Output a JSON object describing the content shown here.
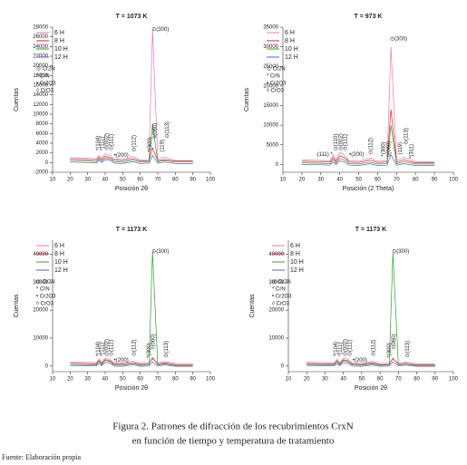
{
  "chart_data": [
    {
      "type": "line",
      "title": "T = 1073 K",
      "x_label": "Posición 2θ",
      "y_label": "Cuentas",
      "x": [
        20,
        30,
        35,
        36.5,
        38,
        40,
        42,
        43.5,
        45,
        50,
        56,
        60,
        65,
        67,
        70,
        74,
        80,
        90
      ],
      "series": [
        {
          "name": "6 H",
          "color": "#e87ab0",
          "values": [
            1000,
            900,
            800,
            1500,
            900,
            1800,
            1600,
            1300,
            800,
            600,
            1200,
            500,
            600,
            27500,
            700,
            1100,
            400,
            400
          ]
        },
        {
          "name": "8 H",
          "color": "#e02020",
          "values": [
            700,
            600,
            500,
            1100,
            600,
            1300,
            1100,
            900,
            500,
            400,
            800,
            300,
            400,
            3000,
            400,
            600,
            300,
            300
          ]
        },
        {
          "name": "10 H",
          "color": "#2ca02c",
          "values": [
            400,
            300,
            200,
            800,
            300,
            900,
            800,
            600,
            200,
            100,
            500,
            100,
            200,
            8000,
            200,
            400,
            100,
            100
          ]
        },
        {
          "name": "12 H",
          "color": "#5b5bd6",
          "values": [
            100,
            0,
            -100,
            500,
            0,
            600,
            500,
            300,
            -100,
            -200,
            200,
            -200,
            -100,
            1500,
            -100,
            100,
            -200,
            -200
          ]
        }
      ],
      "xlim": [
        10,
        100
      ],
      "xticks": [
        10,
        20,
        30,
        40,
        50,
        60,
        70,
        80,
        90,
        100
      ],
      "ylim": [
        -2000,
        28000
      ],
      "yticks": [
        -2000,
        0,
        2000,
        4000,
        6000,
        8000,
        10000,
        12000,
        14000,
        16000,
        18000,
        20000,
        22000,
        24000,
        26000,
        28000
      ],
      "phase_legend": [
        "⊙ Cr2N",
        "* CrN",
        "• Cr2O3",
        "◊ CrO3"
      ],
      "annotations": [
        {
          "text": "⊙(300)",
          "x": 66.5,
          "y": 27500,
          "orientation": "horizontal"
        },
        {
          "text": "*(104)",
          "x": 36,
          "y": 2500,
          "orientation": "vertical"
        },
        {
          "text": "*(111)",
          "x": 38.5,
          "y": 2500,
          "orientation": "vertical"
        },
        {
          "text": "⊙(002)",
          "x": 41,
          "y": 2500,
          "orientation": "vertical"
        },
        {
          "text": "⊙(111)",
          "x": 43.5,
          "y": 2500,
          "orientation": "vertical"
        },
        {
          "text": "•(200)",
          "x": 45,
          "y": 1500,
          "orientation": "horizontal"
        },
        {
          "text": "⊙(112)",
          "x": 56.5,
          "y": 2200,
          "orientation": "vertical"
        },
        {
          "text": "*(300)",
          "x": 65.5,
          "y": 2200,
          "orientation": "vertical"
        },
        {
          "text": "◊(060)",
          "x": 68.5,
          "y": 5000,
          "orientation": "vertical"
        },
        {
          "text": "(119)",
          "x": 72.5,
          "y": 2200,
          "orientation": "vertical"
        },
        {
          "text": "⊙(113)",
          "x": 75.5,
          "y": 5000,
          "orientation": "vertical"
        }
      ]
    },
    {
      "type": "line",
      "title": "T = 973 K",
      "x_label": "Posición (2 Theta)",
      "y_label": "Cuentas",
      "x": [
        20,
        30,
        35,
        36.5,
        38,
        40,
        42,
        43.5,
        45,
        50,
        56,
        60,
        65,
        67,
        70,
        74,
        80,
        90
      ],
      "series": [
        {
          "name": "6 H",
          "color": "#e87ab0",
          "values": [
            1200,
            1000,
            900,
            2500,
            1100,
            3000,
            2500,
            1800,
            900,
            800,
            1600,
            800,
            900,
            30000,
            1000,
            1800,
            700,
            700
          ]
        },
        {
          "name": "8 H",
          "color": "#e02020",
          "values": [
            800,
            700,
            600,
            1800,
            700,
            2200,
            1800,
            1300,
            600,
            500,
            1100,
            500,
            600,
            14000,
            600,
            1200,
            400,
            400
          ]
        },
        {
          "name": "10 H",
          "color": "#2ca02c",
          "values": [
            400,
            300,
            200,
            1200,
            300,
            1500,
            1200,
            800,
            200,
            100,
            600,
            100,
            200,
            10000,
            200,
            700,
            100,
            100
          ]
        },
        {
          "name": "12 H",
          "color": "#5b5bd6",
          "values": [
            0,
            -100,
            -200,
            600,
            -100,
            900,
            700,
            300,
            -200,
            -300,
            200,
            -300,
            -200,
            2500,
            -200,
            200,
            -300,
            -300
          ]
        }
      ],
      "xlim": [
        10,
        100
      ],
      "xticks": [
        10,
        20,
        30,
        40,
        50,
        60,
        70,
        80,
        90,
        100
      ],
      "ylim": [
        -2000,
        35000
      ],
      "yticks": [
        0,
        5000,
        10000,
        15000,
        20000,
        25000,
        30000,
        35000
      ],
      "phase_legend": [
        "⊙ Cr2N",
        "* CrN",
        "• Cr2O3",
        "◊ CrO3"
      ],
      "annotations": [
        {
          "text": "⊙(300)",
          "x": 66.5,
          "y": 32000,
          "orientation": "horizontal"
        },
        {
          "text": "(111) *",
          "x": 28,
          "y": 2500,
          "orientation": "horizontal"
        },
        {
          "text": "⊙(110)",
          "x": 38,
          "y": 3500,
          "orientation": "vertical"
        },
        {
          "text": "⊙(002)",
          "x": 40.5,
          "y": 3500,
          "orientation": "vertical"
        },
        {
          "text": "⊙(111)",
          "x": 43,
          "y": 3500,
          "orientation": "vertical"
        },
        {
          "text": "•(200)",
          "x": 45,
          "y": 2500,
          "orientation": "horizontal"
        },
        {
          "text": "⊙(112)",
          "x": 56.5,
          "y": 2500,
          "orientation": "vertical"
        },
        {
          "text": "*(300)",
          "x": 63,
          "y": 2000,
          "orientation": "vertical"
        },
        {
          "text": "◊(060)",
          "x": 66,
          "y": 2000,
          "orientation": "vertical"
        },
        {
          "text": "(119)",
          "x": 72,
          "y": 2500,
          "orientation": "vertical"
        },
        {
          "text": "⊙(113)",
          "x": 75,
          "y": 5000,
          "orientation": "vertical"
        },
        {
          "text": "*(311)",
          "x": 78,
          "y": 1500,
          "orientation": "vertical"
        }
      ]
    },
    {
      "type": "line",
      "title": "T = 1173 K",
      "x_label": "Posición 2θ",
      "y_label": "Cuentas",
      "x": [
        20,
        30,
        35,
        36.5,
        38,
        40,
        42,
        43.5,
        45,
        50,
        56,
        60,
        65,
        67,
        70,
        74,
        80,
        90
      ],
      "series": [
        {
          "name": "6 H",
          "color": "#e87ab0",
          "values": [
            1500,
            1300,
            1200,
            2500,
            1300,
            2800,
            2600,
            2000,
            1200,
            1100,
            1800,
            1000,
            1100,
            2500,
            1100,
            1600,
            900,
            900
          ]
        },
        {
          "name": "8 H",
          "color": "#e02020",
          "values": [
            1000,
            900,
            800,
            2000,
            900,
            2300,
            2100,
            1500,
            800,
            700,
            1300,
            600,
            700,
            3000,
            700,
            1100,
            500,
            500
          ]
        },
        {
          "name": "10 H",
          "color": "#2ca02c",
          "values": [
            600,
            500,
            400,
            1800,
            500,
            2000,
            1800,
            1200,
            400,
            300,
            900,
            300,
            400,
            41000,
            400,
            800,
            200,
            200
          ]
        },
        {
          "name": "12 H",
          "color": "#5b5bd6",
          "values": [
            200,
            100,
            0,
            1000,
            100,
            1300,
            1100,
            700,
            0,
            -100,
            500,
            -100,
            0,
            1500,
            0,
            400,
            -100,
            -100
          ]
        }
      ],
      "xlim": [
        10,
        100
      ],
      "xticks": [
        10,
        20,
        30,
        40,
        50,
        60,
        70,
        80,
        90,
        100
      ],
      "ylim": [
        -2000,
        45000
      ],
      "yticks": [
        0,
        10000,
        20000,
        30000,
        40000
      ],
      "phase_legend": [
        "⊙ Cr2N",
        "* CrN",
        "• Cr2O3",
        "◊ CrO3"
      ],
      "annotations": [
        {
          "text": "⊙(300)",
          "x": 66.5,
          "y": 41000,
          "orientation": "horizontal"
        },
        {
          "text": "*(104)",
          "x": 36,
          "y": 3500,
          "orientation": "vertical"
        },
        {
          "text": "*(111)",
          "x": 38.5,
          "y": 3500,
          "orientation": "vertical"
        },
        {
          "text": "⊙(002)",
          "x": 41,
          "y": 3500,
          "orientation": "vertical"
        },
        {
          "text": "⊙(111)",
          "x": 43.5,
          "y": 3500,
          "orientation": "vertical"
        },
        {
          "text": "•(200)",
          "x": 45,
          "y": 2000,
          "orientation": "horizontal"
        },
        {
          "text": "⊙(112)",
          "x": 56.5,
          "y": 3500,
          "orientation": "vertical"
        },
        {
          "text": "*(300)",
          "x": 65,
          "y": 3000,
          "orientation": "vertical"
        },
        {
          "text": "◊(060)",
          "x": 67.5,
          "y": 6000,
          "orientation": "vertical"
        },
        {
          "text": "⊙(113)",
          "x": 75,
          "y": 3000,
          "orientation": "vertical"
        }
      ]
    },
    {
      "type": "line",
      "title": "T = 1173 K",
      "x_label": "Posición 2θ",
      "y_label": "Cuentas",
      "x": [
        20,
        30,
        35,
        36.5,
        38,
        40,
        42,
        43.5,
        45,
        50,
        56,
        60,
        65,
        67,
        70,
        74,
        80,
        90
      ],
      "series": [
        {
          "name": "6 H",
          "color": "#e87ab0",
          "values": [
            1400,
            1200,
            1100,
            2400,
            1200,
            2700,
            2500,
            1900,
            1100,
            1000,
            1700,
            900,
            1000,
            2400,
            1000,
            1500,
            800,
            800
          ]
        },
        {
          "name": "8 H",
          "color": "#e02020",
          "values": [
            900,
            800,
            700,
            1900,
            800,
            2200,
            2000,
            1400,
            700,
            600,
            1200,
            500,
            600,
            2800,
            600,
            1000,
            400,
            400
          ]
        },
        {
          "name": "10 H",
          "color": "#2ca02c",
          "values": [
            600,
            500,
            400,
            1700,
            500,
            1900,
            1700,
            1100,
            400,
            300,
            800,
            300,
            400,
            40500,
            400,
            700,
            200,
            200
          ]
        },
        {
          "name": "12 H",
          "color": "#5b5bd6",
          "values": [
            200,
            100,
            0,
            900,
            100,
            1200,
            1000,
            600,
            0,
            -100,
            400,
            -100,
            0,
            1400,
            0,
            300,
            -100,
            -100
          ]
        }
      ],
      "xlim": [
        10,
        100
      ],
      "xticks": [
        10,
        20,
        30,
        40,
        50,
        60,
        70,
        80,
        90,
        100
      ],
      "ylim": [
        -2000,
        45000
      ],
      "yticks": [
        0,
        10000,
        20000,
        30000,
        40000
      ],
      "phase_legend": [
        "⊙ Cr2N",
        "* CrN",
        "• Cr2O3",
        "◊ CrO3"
      ],
      "annotations": [
        {
          "text": "⊙(300)",
          "x": 66.5,
          "y": 41000,
          "orientation": "horizontal"
        },
        {
          "text": "*(104)",
          "x": 36,
          "y": 3500,
          "orientation": "vertical"
        },
        {
          "text": "*(111)",
          "x": 38.5,
          "y": 3500,
          "orientation": "vertical"
        },
        {
          "text": "⊙(002)",
          "x": 41,
          "y": 3500,
          "orientation": "vertical"
        },
        {
          "text": "⊙(111)",
          "x": 43.5,
          "y": 3500,
          "orientation": "vertical"
        },
        {
          "text": "•(200)",
          "x": 45,
          "y": 2000,
          "orientation": "horizontal"
        },
        {
          "text": "⊙(112)",
          "x": 56.5,
          "y": 3500,
          "orientation": "vertical"
        },
        {
          "text": "*(300)",
          "x": 65,
          "y": 3000,
          "orientation": "vertical"
        },
        {
          "text": "◊(060)",
          "x": 67.5,
          "y": 6000,
          "orientation": "vertical"
        },
        {
          "text": "⊙(113)",
          "x": 75,
          "y": 3000,
          "orientation": "vertical"
        }
      ]
    }
  ],
  "caption": {
    "line1": "Figura 2. Patrones de difracción de los recubrimientos CrxN",
    "line2": "en función de tiempo y temperatura de tratamiento"
  },
  "source": "Fuente: Elaboración propia"
}
